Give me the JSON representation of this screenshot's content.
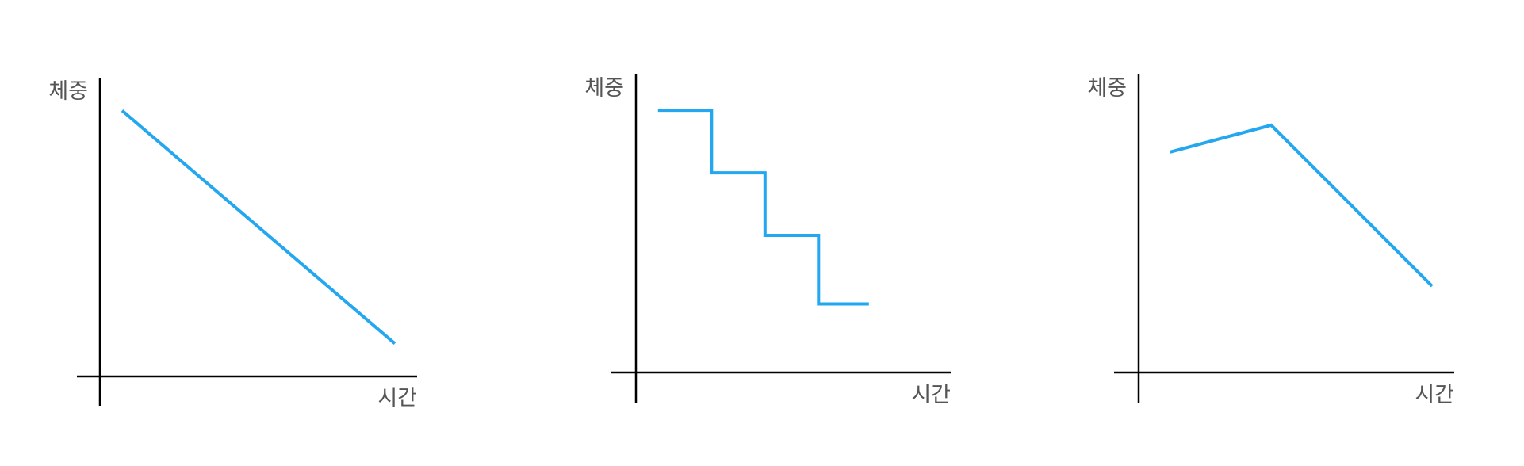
{
  "series_color": "#22a7f0",
  "axis_color": "#000000",
  "label_color": "#555555",
  "chart_data": [
    {
      "type": "line",
      "ylabel": "체중",
      "xlabel": "시간",
      "xlim": [
        0,
        10
      ],
      "ylim": [
        0,
        10
      ],
      "grid": false,
      "series": [
        {
          "x": [
            0.7,
            9.3
          ],
          "y": [
            8.9,
            1.1
          ]
        }
      ]
    },
    {
      "type": "line",
      "ylabel": "체중",
      "xlabel": "시간",
      "xlim": [
        0,
        10
      ],
      "ylim": [
        0,
        10
      ],
      "grid": false,
      "series": [
        {
          "x": [
            0.7,
            2.4,
            2.4,
            4.1,
            4.1,
            5.8,
            5.8,
            7.4
          ],
          "y": [
            8.8,
            8.8,
            6.7,
            6.7,
            4.6,
            4.6,
            2.3,
            2.3
          ]
        }
      ]
    },
    {
      "type": "line",
      "ylabel": "체중",
      "xlabel": "시간",
      "xlim": [
        0,
        10
      ],
      "ylim": [
        0,
        10
      ],
      "grid": false,
      "series": [
        {
          "x": [
            1.0,
            4.2,
            9.3
          ],
          "y": [
            7.4,
            8.3,
            2.9
          ]
        }
      ]
    }
  ]
}
